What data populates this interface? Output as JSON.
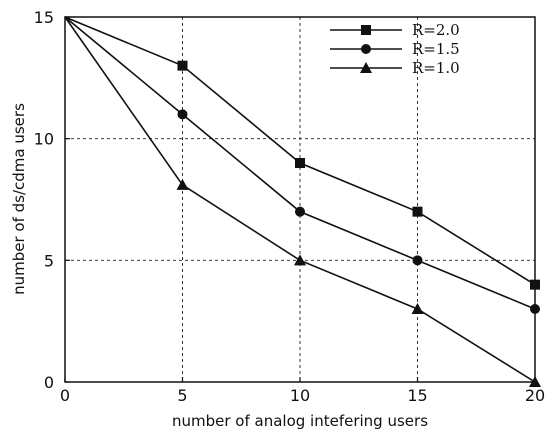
{
  "chart_data": {
    "type": "line",
    "title": "",
    "xlabel": "number of analog intefering users",
    "ylabel": "number of ds/cdma users",
    "x": [
      0,
      5,
      10,
      15,
      20
    ],
    "xlim": [
      0,
      20
    ],
    "ylim": [
      0,
      15
    ],
    "xticks": [
      "0",
      "5",
      "10",
      "15",
      "20"
    ],
    "yticks": [
      "0",
      "5",
      "10",
      "15"
    ],
    "grid": true,
    "legend_position": "top-right",
    "series": [
      {
        "name": "R=2.0",
        "marker": "square",
        "values": [
          15,
          13,
          9,
          7,
          4
        ]
      },
      {
        "name": "R=1.5",
        "marker": "circle",
        "values": [
          15,
          11,
          7,
          5,
          3
        ]
      },
      {
        "name": "R=1.0",
        "marker": "triangle",
        "values": [
          15,
          8.1,
          5,
          3,
          0
        ]
      }
    ]
  }
}
